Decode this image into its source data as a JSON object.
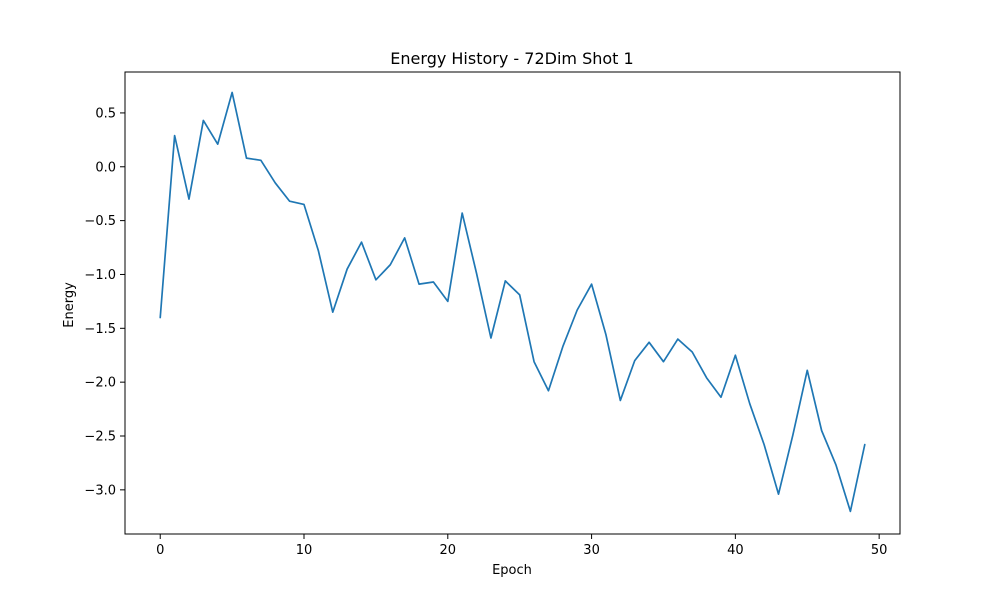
{
  "chart_data": {
    "type": "line",
    "title": "Energy History - 72Dim Shot 1",
    "xlabel": "Epoch",
    "ylabel": "Energy",
    "xlim": [
      -2.45,
      51.45
    ],
    "ylim": [
      -3.41,
      0.88
    ],
    "xticks": [
      0,
      10,
      20,
      30,
      40,
      50
    ],
    "yticks": [
      0.5,
      0.0,
      -0.5,
      -1.0,
      -1.5,
      -2.0,
      -2.5,
      -3.0
    ],
    "xtick_labels": [
      "0",
      "10",
      "20",
      "30",
      "40",
      "50"
    ],
    "ytick_labels": [
      "0.5",
      "0.0",
      "−0.5",
      "−1.0",
      "−1.5",
      "−2.0",
      "−2.5",
      "−3.0"
    ],
    "grid": false,
    "series": [
      {
        "color": "#1f77b4",
        "x": [
          0,
          1,
          2,
          3,
          4,
          5,
          6,
          7,
          8,
          9,
          10,
          11,
          12,
          13,
          14,
          15,
          16,
          17,
          18,
          19,
          20,
          21,
          22,
          23,
          24,
          25,
          26,
          27,
          28,
          29,
          30,
          31,
          32,
          33,
          34,
          35,
          36,
          37,
          38,
          39,
          40,
          41,
          42,
          43,
          44,
          45,
          46,
          47,
          48,
          49
        ],
        "y": [
          -1.4,
          0.29,
          -0.3,
          0.43,
          0.21,
          0.69,
          0.08,
          0.06,
          -0.15,
          -0.32,
          -0.35,
          -0.78,
          -1.35,
          -0.95,
          -0.7,
          -1.05,
          -0.91,
          -0.66,
          -1.09,
          -1.07,
          -1.25,
          -0.43,
          -0.99,
          -1.59,
          -1.06,
          -1.19,
          -1.81,
          -2.08,
          -1.67,
          -1.33,
          -1.09,
          -1.56,
          -2.17,
          -1.8,
          -1.63,
          -1.81,
          -1.6,
          -1.72,
          -1.96,
          -2.14,
          -1.75,
          -2.2,
          -2.58,
          -3.04,
          -2.49,
          -1.89,
          -2.45,
          -2.77,
          -3.2,
          -2.58
        ]
      }
    ]
  }
}
